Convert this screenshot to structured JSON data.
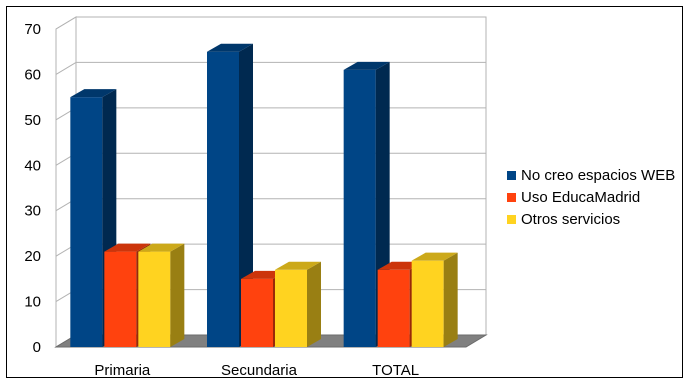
{
  "chart_data": {
    "type": "bar",
    "categories": [
      "Primaria",
      "Secundaria",
      "TOTAL"
    ],
    "series": [
      {
        "name": "No creo espacios WEB",
        "values": [
          55,
          65,
          61
        ],
        "color": "#004586"
      },
      {
        "name": "Uso EducaMadrid",
        "values": [
          21,
          15,
          17
        ],
        "color": "#ff420e"
      },
      {
        "name": "Otros servicios",
        "values": [
          21,
          17,
          19
        ],
        "color": "#ffd320"
      }
    ],
    "y_ticks": [
      "0",
      "10",
      "20",
      "30",
      "40",
      "50",
      "60",
      "70"
    ],
    "ylim": [
      0,
      70
    ],
    "grid": true,
    "legend_position": "right",
    "style": "3d-bar"
  }
}
